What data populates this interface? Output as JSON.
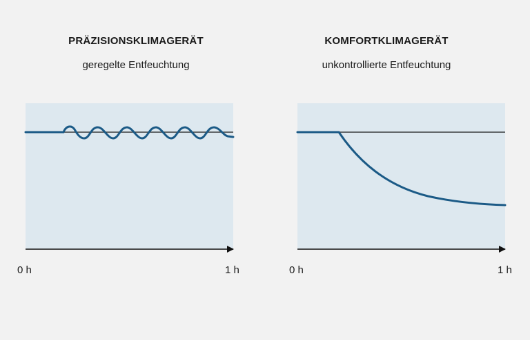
{
  "left_panel": {
    "title": "PRÄZISIONSKLIMAGERÄT",
    "subtitle": "geregelte Entfeuchtung",
    "x_start_label": "0 h",
    "x_end_label": "1 h"
  },
  "right_panel": {
    "title": "KOMFORTKLIMAGERÄT",
    "subtitle": "unkontrollierte Entfeuchtung",
    "x_start_label": "0 h",
    "x_end_label": "1 h"
  },
  "colors": {
    "background": "#f2f2f2",
    "plot_area": "#dde8ef",
    "curve": "#1b5a86",
    "reference_line": "#1a1a1a",
    "axis": "#111111"
  }
}
